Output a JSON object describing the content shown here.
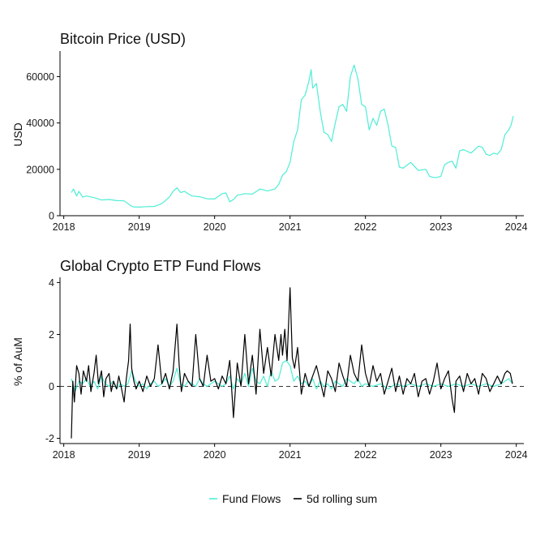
{
  "colors": {
    "price": "#4eeed5",
    "flows": "#4eeed5",
    "rolling": "#000000",
    "zero_line": "#333333"
  },
  "legend": {
    "items": [
      {
        "label": "Fund Flows"
      },
      {
        "label": "5d rolling sum"
      }
    ]
  },
  "chart_data": [
    {
      "type": "line",
      "title": "Bitcoin Price (USD)",
      "xlabel": "",
      "ylabel": "USD",
      "x_ticks": [
        "2018",
        "2019",
        "2020",
        "2021",
        "2022",
        "2023",
        "2024"
      ],
      "x_tick_values": [
        2018,
        2019,
        2020,
        2021,
        2022,
        2023,
        2024
      ],
      "y_ticks": [
        "0",
        "20000",
        "40000",
        "60000"
      ],
      "y_tick_values": [
        0,
        20000,
        40000,
        60000
      ],
      "xlim": [
        2017.95,
        2024.1
      ],
      "ylim": [
        0,
        71000
      ],
      "grid": false,
      "series": [
        {
          "x": [
            2018.1,
            2018.13,
            2018.17,
            2018.2,
            2018.25,
            2018.3,
            2018.4,
            2018.5,
            2018.6,
            2018.7,
            2018.8,
            2018.88,
            2018.92,
            2019.0,
            2019.1,
            2019.2,
            2019.3,
            2019.4,
            2019.45,
            2019.5,
            2019.55,
            2019.6,
            2019.7,
            2019.8,
            2019.9,
            2020.0,
            2020.1,
            2020.15,
            2020.2,
            2020.25,
            2020.3,
            2020.4,
            2020.5,
            2020.6,
            2020.7,
            2020.8,
            2020.85,
            2020.9,
            2020.95,
            2021.0,
            2021.05,
            2021.1,
            2021.15,
            2021.2,
            2021.25,
            2021.28,
            2021.3,
            2021.35,
            2021.4,
            2021.45,
            2021.5,
            2021.55,
            2021.6,
            2021.65,
            2021.7,
            2021.75,
            2021.8,
            2021.85,
            2021.9,
            2021.95,
            2022.0,
            2022.05,
            2022.1,
            2022.15,
            2022.2,
            2022.25,
            2022.3,
            2022.35,
            2022.4,
            2022.45,
            2022.5,
            2022.6,
            2022.7,
            2022.8,
            2022.85,
            2022.9,
            2022.95,
            2023.0,
            2023.05,
            2023.1,
            2023.15,
            2023.2,
            2023.25,
            2023.3,
            2023.4,
            2023.5,
            2023.55,
            2023.6,
            2023.65,
            2023.7,
            2023.75,
            2023.8,
            2023.85,
            2023.9,
            2023.93,
            2023.96
          ],
          "y": [
            10000,
            11500,
            8500,
            10500,
            8000,
            8500,
            7800,
            6800,
            7000,
            6500,
            6400,
            4500,
            3800,
            3700,
            3900,
            4000,
            5200,
            8000,
            10500,
            12000,
            10000,
            10500,
            8500,
            8200,
            7300,
            7200,
            9500,
            9800,
            6000,
            7000,
            8800,
            9500,
            9300,
            11500,
            10700,
            11500,
            13500,
            17500,
            19000,
            23000,
            32000,
            37000,
            50000,
            52000,
            58000,
            63000,
            55000,
            57000,
            45000,
            36000,
            35000,
            32000,
            40000,
            47000,
            48000,
            45000,
            60000,
            65000,
            59000,
            48000,
            47000,
            37000,
            42000,
            39000,
            45000,
            46000,
            39000,
            30000,
            29500,
            21000,
            20500,
            23000,
            19500,
            20000,
            17000,
            16500,
            16500,
            17000,
            22000,
            23000,
            23500,
            20500,
            28000,
            28500,
            27000,
            30000,
            29500,
            26500,
            26000,
            27000,
            26500,
            28500,
            35000,
            37000,
            39000,
            43000
          ]
        }
      ]
    },
    {
      "type": "line",
      "title": "Global Crypto ETP Fund Flows",
      "xlabel": "",
      "ylabel": "% of AuM",
      "x_ticks": [
        "2018",
        "2019",
        "2020",
        "2021",
        "2022",
        "2023",
        "2024"
      ],
      "x_tick_values": [
        2018,
        2019,
        2020,
        2021,
        2022,
        2023,
        2024
      ],
      "y_ticks": [
        "-2",
        "0",
        "2",
        "4"
      ],
      "y_tick_values": [
        -2,
        0,
        2,
        4
      ],
      "xlim": [
        2017.95,
        2024.1
      ],
      "ylim": [
        -2.2,
        4.2
      ],
      "grid": false,
      "reference_lines": [
        {
          "axis": "y",
          "value": 0,
          "style": "dashed"
        }
      ],
      "series": [
        {
          "name": "Fund Flows",
          "x": [
            2018.1,
            2018.15,
            2018.2,
            2018.25,
            2018.3,
            2018.35,
            2018.4,
            2018.45,
            2018.5,
            2018.55,
            2018.6,
            2018.65,
            2018.7,
            2018.75,
            2018.8,
            2018.85,
            2018.9,
            2018.95,
            2019.0,
            2019.05,
            2019.1,
            2019.15,
            2019.2,
            2019.25,
            2019.3,
            2019.35,
            2019.4,
            2019.45,
            2019.5,
            2019.55,
            2019.6,
            2019.65,
            2019.7,
            2019.75,
            2019.8,
            2019.85,
            2019.9,
            2019.95,
            2020.0,
            2020.05,
            2020.1,
            2020.15,
            2020.2,
            2020.25,
            2020.3,
            2020.35,
            2020.4,
            2020.45,
            2020.5,
            2020.55,
            2020.6,
            2020.65,
            2020.7,
            2020.75,
            2020.8,
            2020.85,
            2020.9,
            2020.95,
            2021.0,
            2021.05,
            2021.1,
            2021.15,
            2021.2,
            2021.25,
            2021.3,
            2021.35,
            2021.4,
            2021.45,
            2021.5,
            2021.55,
            2021.6,
            2021.65,
            2021.7,
            2021.75,
            2021.8,
            2021.85,
            2021.9,
            2021.95,
            2022.0,
            2022.1,
            2022.2,
            2022.3,
            2022.4,
            2022.5,
            2022.6,
            2022.7,
            2022.8,
            2022.9,
            2023.0,
            2023.1,
            2023.2,
            2023.3,
            2023.4,
            2023.5,
            2023.6,
            2023.7,
            2023.8,
            2023.85,
            2023.9,
            2023.95
          ],
          "y": [
            0.3,
            -0.2,
            0.2,
            0.1,
            0.3,
            0.0,
            0.2,
            -0.1,
            0.4,
            0.1,
            0.0,
            0.2,
            -0.1,
            0.1,
            0.0,
            0.1,
            0.6,
            0.2,
            0.0,
            0.1,
            -0.1,
            0.1,
            0.2,
            0.0,
            0.1,
            0.3,
            0.0,
            0.2,
            0.7,
            0.1,
            0.0,
            0.2,
            0.1,
            0.0,
            0.3,
            0.1,
            0.0,
            0.1,
            0.2,
            0.1,
            0.0,
            0.1,
            0.4,
            -0.1,
            0.3,
            0.1,
            0.5,
            0.0,
            0.7,
            0.2,
            0.1,
            0.4,
            0.0,
            0.6,
            0.2,
            0.3,
            0.9,
            1.0,
            0.8,
            0.2,
            0.4,
            0.1,
            0.2,
            0.0,
            0.3,
            -0.1,
            0.2,
            0.0,
            0.1,
            -0.1,
            0.2,
            0.1,
            0.0,
            0.3,
            0.2,
            0.1,
            0.3,
            0.0,
            0.1,
            0.0,
            0.1,
            -0.1,
            0.1,
            0.0,
            0.1,
            0.0,
            0.1,
            0.0,
            0.1,
            0.0,
            0.1,
            0.0,
            0.1,
            0.0,
            0.1,
            0.0,
            0.1,
            0.2,
            0.3,
            0.1
          ]
        },
        {
          "name": "5d rolling sum",
          "x": [
            2018.1,
            2018.12,
            2018.14,
            2018.17,
            2018.2,
            2018.23,
            2018.26,
            2018.3,
            2018.33,
            2018.36,
            2018.4,
            2018.43,
            2018.46,
            2018.5,
            2018.53,
            2018.56,
            2018.6,
            2018.63,
            2018.66,
            2018.7,
            2018.73,
            2018.76,
            2018.8,
            2018.83,
            2018.86,
            2018.88,
            2018.9,
            2018.93,
            2018.96,
            2019.0,
            2019.05,
            2019.1,
            2019.15,
            2019.2,
            2019.25,
            2019.3,
            2019.35,
            2019.4,
            2019.45,
            2019.5,
            2019.53,
            2019.56,
            2019.6,
            2019.65,
            2019.7,
            2019.75,
            2019.8,
            2019.85,
            2019.9,
            2019.95,
            2020.0,
            2020.05,
            2020.1,
            2020.15,
            2020.2,
            2020.22,
            2020.25,
            2020.3,
            2020.35,
            2020.4,
            2020.45,
            2020.5,
            2020.55,
            2020.6,
            2020.65,
            2020.7,
            2020.75,
            2020.8,
            2020.85,
            2020.88,
            2020.9,
            2020.93,
            2020.96,
            2021.0,
            2021.03,
            2021.06,
            2021.1,
            2021.15,
            2021.2,
            2021.25,
            2021.3,
            2021.35,
            2021.4,
            2021.45,
            2021.5,
            2021.55,
            2021.6,
            2021.65,
            2021.7,
            2021.75,
            2021.8,
            2021.85,
            2021.9,
            2021.95,
            2022.0,
            2022.05,
            2022.1,
            2022.15,
            2022.2,
            2022.25,
            2022.3,
            2022.35,
            2022.4,
            2022.45,
            2022.5,
            2022.55,
            2022.6,
            2022.65,
            2022.7,
            2022.75,
            2022.8,
            2022.85,
            2022.9,
            2022.95,
            2023.0,
            2023.05,
            2023.1,
            2023.15,
            2023.18,
            2023.2,
            2023.25,
            2023.3,
            2023.35,
            2023.4,
            2023.45,
            2023.5,
            2023.55,
            2023.6,
            2023.65,
            2023.7,
            2023.75,
            2023.8,
            2023.85,
            2023.88,
            2023.92,
            2023.95
          ],
          "y": [
            -2.0,
            0.2,
            -0.6,
            0.8,
            0.5,
            -0.3,
            0.6,
            0.2,
            0.8,
            -0.2,
            0.5,
            1.2,
            0.1,
            0.6,
            -0.4,
            0.3,
            0.5,
            -0.2,
            0.2,
            -0.1,
            0.4,
            0.0,
            -0.6,
            0.3,
            1.0,
            2.4,
            0.7,
            0.2,
            -0.1,
            0.2,
            -0.2,
            0.4,
            0.0,
            0.3,
            1.6,
            0.1,
            0.5,
            -0.1,
            0.6,
            2.4,
            0.8,
            -0.2,
            0.5,
            0.2,
            0.0,
            2.0,
            0.3,
            0.0,
            1.2,
            0.2,
            0.3,
            -0.1,
            0.4,
            0.1,
            1.0,
            0.2,
            -1.2,
            0.9,
            0.0,
            2.0,
            0.1,
            1.2,
            -0.3,
            2.2,
            0.5,
            1.5,
            0.4,
            2.0,
            1.0,
            2.0,
            1.2,
            2.2,
            1.0,
            3.8,
            1.1,
            0.7,
            1.5,
            -0.3,
            0.5,
            0.0,
            0.4,
            0.8,
            0.2,
            -0.4,
            0.6,
            0.3,
            -0.2,
            0.9,
            0.4,
            0.0,
            1.2,
            0.5,
            0.2,
            1.6,
            0.5,
            0.0,
            0.8,
            0.2,
            0.5,
            -0.3,
            0.2,
            0.7,
            -0.2,
            0.4,
            -0.3,
            0.3,
            0.1,
            0.5,
            -0.4,
            0.2,
            0.3,
            -0.3,
            0.2,
            0.9,
            -0.1,
            0.3,
            0.6,
            -0.5,
            -1.0,
            0.2,
            0.4,
            -0.2,
            0.5,
            0.1,
            0.3,
            -0.3,
            0.5,
            0.3,
            -0.2,
            0.1,
            0.4,
            0.1,
            0.5,
            0.6,
            0.5,
            0.1
          ]
        }
      ]
    }
  ]
}
